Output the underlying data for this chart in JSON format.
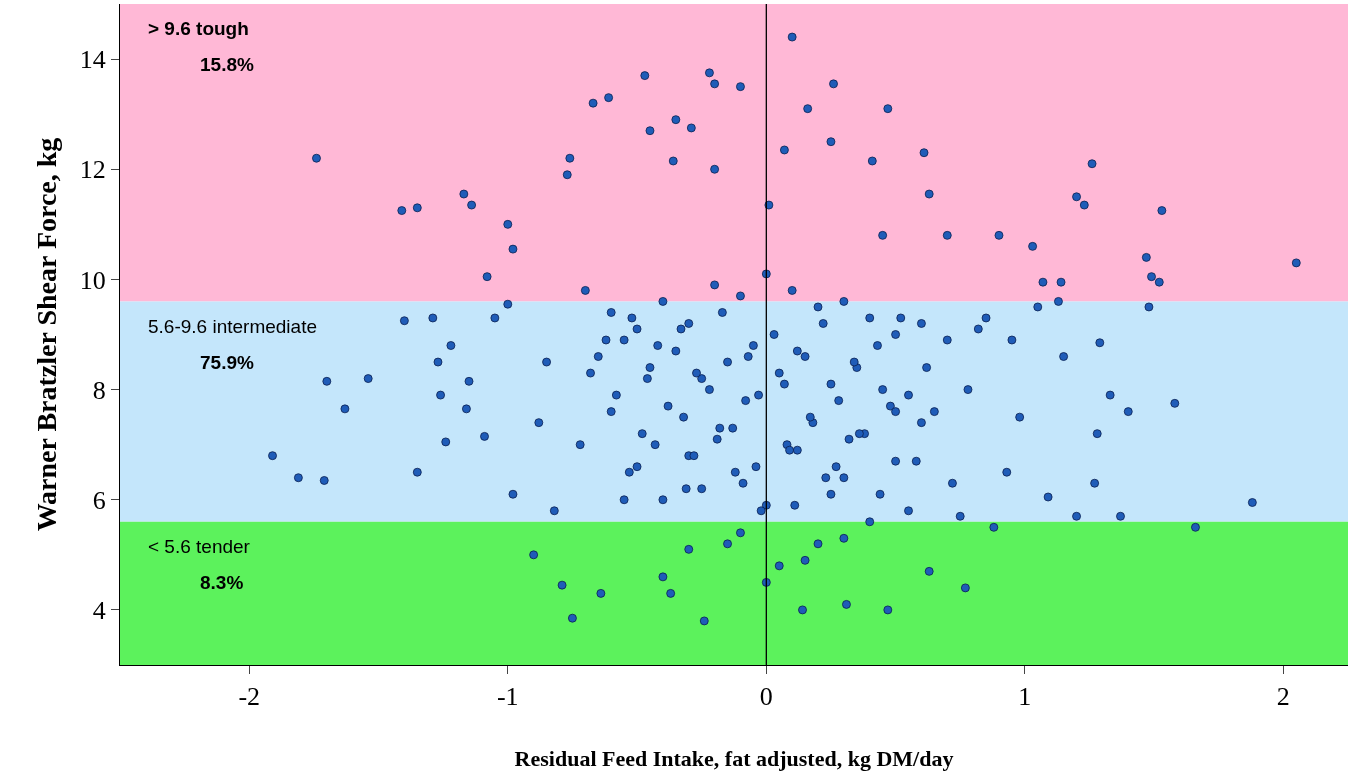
{
  "chart_data": {
    "type": "scatter",
    "xlabel": "Residual Feed Intake, fat adjusted, kg DM/day",
    "ylabel": "Warner Bratzler Shear Force, kg",
    "xlim": [
      -2.5,
      2.25
    ],
    "ylim": [
      3,
      15
    ],
    "xticks": [
      -2,
      -1,
      0,
      1,
      2
    ],
    "yticks": [
      4,
      6,
      8,
      10,
      12,
      14
    ],
    "grid": false,
    "marker": "circle",
    "bands": [
      {
        "axis": "y",
        "from": 9.6,
        "to": 15,
        "label": "> 9.6 tough",
        "color": "#ffb8d6"
      },
      {
        "axis": "y",
        "from": 5.6,
        "to": 9.6,
        "label": "5.6-9.6 intermediate",
        "color": "#c4e6fb"
      },
      {
        "axis": "y",
        "from": 3,
        "to": 5.6,
        "label": "< 5.6 tender",
        "color": "#5cf25c"
      }
    ],
    "ref_lines": [
      {
        "axis": "x",
        "value": 0,
        "color": "#000000"
      }
    ],
    "annotations": [
      "15.8%",
      "75.9%",
      "8.3%"
    ],
    "series": [
      {
        "color": "#1f5cb8",
        "x": [
          2.05,
          1.88,
          1.66,
          1.58,
          1.53,
          1.52,
          1.47,
          1.49,
          1.48,
          1.4,
          1.37,
          1.33,
          1.26,
          1.23,
          1.29,
          1.28,
          1.27,
          1.2,
          1.2,
          1.13,
          1.14,
          1.15,
          1.09,
          1.03,
          1.05,
          1.07,
          0.95,
          0.9,
          0.85,
          0.98,
          0.93,
          0.88,
          0.82,
          0.78,
          0.75,
          0.7,
          -1.91,
          -1.81,
          -1.74,
          -1.71,
          -1.7,
          -1.63,
          -1.54,
          -1.41,
          -1.35,
          -1.4,
          -1.35,
          -1.29,
          -1.27,
          -1.26,
          -1.24,
          -1.22,
          -1.17,
          -1.14,
          -1.16,
          -1.15,
          -1.08,
          -1.09,
          -1.05,
          -1.0,
          -1.0,
          -0.98,
          -0.98,
          -0.9,
          -0.88,
          -0.85,
          -0.82,
          0.1,
          -0.67,
          -0.61,
          -0.47,
          -0.22,
          -0.2,
          -0.1,
          0.16,
          0.26,
          0.47,
          -0.29,
          -0.35,
          -0.45,
          -0.36,
          -0.2,
          -0.76,
          0.07,
          0.25,
          0.41,
          0.61,
          -0.77,
          0.63,
          0.01,
          0.45,
          -0.24,
          -0.75,
          0.14,
          0.47,
          -0.64,
          0.0,
          0.31,
          0.77,
          -0.37,
          -0.4,
          0.63,
          -0.79,
          -0.7,
          -0.6,
          -0.5,
          -0.4,
          -0.3,
          -0.2,
          -0.1,
          0.0,
          0.1,
          0.2,
          0.3,
          0.4,
          0.5,
          0.6,
          0.7,
          -0.65,
          -0.55,
          -0.45,
          -0.35,
          -0.25,
          -0.15,
          -0.05,
          0.05,
          0.15,
          0.25,
          0.35,
          0.45,
          0.55,
          0.65,
          -0.6,
          -0.48,
          -0.32,
          -0.18,
          -0.08,
          0.08,
          0.18,
          0.32,
          0.48,
          0.6,
          -0.72,
          -0.5,
          -0.3,
          -0.12,
          0.12,
          0.3,
          0.5,
          0.72,
          -0.55,
          -0.25,
          0.0,
          0.25,
          0.55,
          -0.4,
          -0.1,
          0.2,
          0.4,
          -0.3,
          0.3,
          -0.15,
          0.15,
          0.05,
          -0.62,
          -0.52,
          -0.42,
          -0.33,
          -0.27,
          -0.17,
          -0.07,
          0.03,
          0.12,
          0.22,
          0.34,
          0.43,
          0.52,
          0.62,
          -0.58,
          -0.46,
          -0.38,
          -0.22,
          -0.13,
          -0.03,
          0.07,
          0.17,
          0.28,
          0.38,
          0.5,
          -0.68,
          -0.43,
          -0.28,
          -0.19,
          -0.04,
          0.09,
          0.23,
          0.36,
          0.58,
          -0.53,
          -0.31,
          -0.09,
          0.11,
          0.27,
          0.44,
          -0.02
        ],
        "values": [
          10.3,
          5.95,
          5.5,
          7.75,
          11.25,
          9.95,
          10.4,
          10.05,
          9.5,
          7.6,
          5.7,
          7.9,
          12.1,
          11.35,
          8.85,
          7.2,
          6.3,
          11.5,
          5.7,
          9.6,
          9.95,
          8.6,
          6.05,
          10.6,
          9.5,
          9.95,
          8.9,
          10.8,
          9.3,
          7.5,
          6.5,
          5.5,
          9.1,
          8.0,
          5.7,
          10.8,
          6.8,
          6.4,
          12.2,
          6.35,
          8.15,
          7.65,
          8.2,
          11.25,
          11.3,
          9.25,
          6.5,
          9.3,
          8.5,
          7.9,
          7.05,
          8.8,
          11.55,
          11.35,
          7.65,
          8.15,
          10.05,
          7.15,
          9.3,
          9.55,
          11.0,
          6.1,
          10.55,
          5.0,
          7.4,
          8.5,
          5.8,
          14.4,
          13.2,
          13.3,
          13.7,
          13.75,
          13.55,
          13.5,
          13.1,
          13.55,
          13.1,
          12.75,
          12.9,
          12.7,
          12.15,
          12.0,
          12.2,
          12.35,
          12.5,
          12.15,
          12.3,
          11.9,
          11.55,
          11.35,
          10.8,
          3.8,
          3.85,
          4.0,
          4.0,
          4.3,
          4.5,
          4.1,
          4.4,
          4.3,
          4.6,
          4.7,
          4.45,
          9.8,
          9.4,
          9.1,
          9.6,
          9.2,
          9.9,
          9.7,
          10.1,
          9.8,
          9.5,
          9.6,
          9.3,
          9.0,
          9.2,
          8.9,
          8.6,
          8.9,
          8.4,
          8.7,
          8.2,
          8.5,
          8.8,
          8.3,
          8.6,
          8.1,
          8.4,
          8.0,
          7.9,
          7.6,
          7.6,
          7.2,
          7.5,
          7.3,
          7.8,
          7.0,
          7.4,
          7.1,
          7.7,
          7.4,
          7.0,
          6.6,
          6.8,
          6.5,
          6.9,
          6.4,
          6.7,
          6.3,
          6.0,
          6.2,
          5.9,
          6.1,
          5.8,
          6.0,
          5.4,
          5.2,
          5.6,
          5.1,
          5.3,
          5.2,
          4.9,
          4.8,
          8.9,
          9.3,
          8.8,
          9.1,
          8.3,
          9.4,
          8.6,
          9.0,
          8.7,
          9.2,
          8.5,
          8.8,
          9.3,
          8.4,
          7.9,
          8.2,
          7.7,
          8.0,
          7.3,
          7.9,
          8.1,
          7.5,
          7.8,
          7.2,
          7.6,
          8.3,
          7.0,
          6.8,
          7.1,
          6.6,
          6.9,
          6.4,
          7.2,
          6.7,
          6.5,
          6.2,
          6.3,
          5.9,
          6.6,
          6.1,
          5.8
        ]
      }
    ]
  }
}
